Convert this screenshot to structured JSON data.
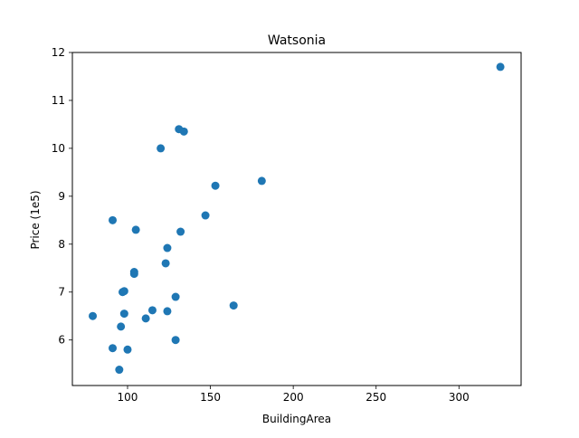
{
  "chart_data": {
    "type": "scatter",
    "title": "Watsonia",
    "xlabel": "BuildingArea",
    "ylabel": "Price (1e5)",
    "xlim": [
      66.7,
      337.5
    ],
    "ylim": [
      5.05,
      12.0
    ],
    "xticks": [
      100,
      150,
      200,
      250,
      300
    ],
    "yticks": [
      6,
      7,
      8,
      9,
      10,
      11,
      12
    ],
    "grid": false,
    "marker_color": "#1f77b4",
    "points": [
      {
        "x": 325,
        "y": 11.7
      },
      {
        "x": 131,
        "y": 10.4
      },
      {
        "x": 134,
        "y": 10.35
      },
      {
        "x": 120,
        "y": 10.0
      },
      {
        "x": 181,
        "y": 9.32
      },
      {
        "x": 153,
        "y": 9.22
      },
      {
        "x": 147,
        "y": 8.6
      },
      {
        "x": 91,
        "y": 8.5
      },
      {
        "x": 105,
        "y": 8.3
      },
      {
        "x": 132,
        "y": 8.26
      },
      {
        "x": 124,
        "y": 7.92
      },
      {
        "x": 123,
        "y": 7.6
      },
      {
        "x": 104,
        "y": 7.42
      },
      {
        "x": 104,
        "y": 7.38
      },
      {
        "x": 98,
        "y": 7.02
      },
      {
        "x": 97,
        "y": 7.0
      },
      {
        "x": 129,
        "y": 6.9
      },
      {
        "x": 164,
        "y": 6.72
      },
      {
        "x": 115,
        "y": 6.62
      },
      {
        "x": 124,
        "y": 6.6
      },
      {
        "x": 98,
        "y": 6.55
      },
      {
        "x": 79,
        "y": 6.5
      },
      {
        "x": 111,
        "y": 6.45
      },
      {
        "x": 96,
        "y": 6.28
      },
      {
        "x": 129,
        "y": 6.0
      },
      {
        "x": 91,
        "y": 5.83
      },
      {
        "x": 100,
        "y": 5.8
      },
      {
        "x": 95,
        "y": 5.38
      }
    ]
  }
}
